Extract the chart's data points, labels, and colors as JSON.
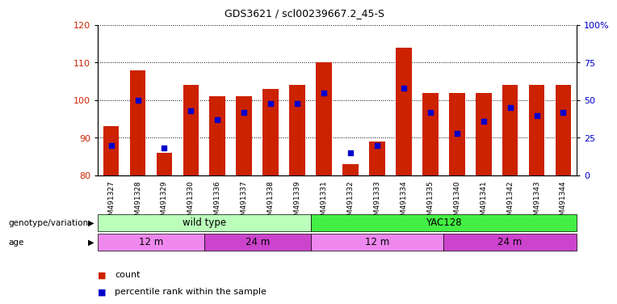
{
  "title": "GDS3621 / scl00239667.2_45-S",
  "samples": [
    "GSM491327",
    "GSM491328",
    "GSM491329",
    "GSM491330",
    "GSM491336",
    "GSM491337",
    "GSM491338",
    "GSM491339",
    "GSM491331",
    "GSM491332",
    "GSM491333",
    "GSM491334",
    "GSM491335",
    "GSM491340",
    "GSM491341",
    "GSM491342",
    "GSM491343",
    "GSM491344"
  ],
  "count_values": [
    93,
    108,
    86,
    104,
    101,
    101,
    103,
    104,
    110,
    83,
    89,
    114,
    102,
    102,
    102,
    104,
    104,
    104
  ],
  "percentile_values": [
    20,
    50,
    18,
    43,
    37,
    42,
    48,
    48,
    55,
    15,
    20,
    58,
    42,
    28,
    36,
    45,
    40,
    42
  ],
  "ylim_left": [
    80,
    120
  ],
  "ylim_right": [
    0,
    100
  ],
  "yticks_left": [
    80,
    90,
    100,
    110,
    120
  ],
  "yticks_right": [
    0,
    25,
    50,
    75,
    100
  ],
  "ytick_labels_right": [
    "0",
    "25",
    "50",
    "75",
    "100%"
  ],
  "bar_color": "#cc2200",
  "dot_color": "#0000cc",
  "genotype_groups": [
    {
      "label": "wild type",
      "start": 0,
      "end": 8,
      "color": "#bbffbb"
    },
    {
      "label": "YAC128",
      "start": 8,
      "end": 18,
      "color": "#44ee44"
    }
  ],
  "age_groups": [
    {
      "label": "12 m",
      "start": 0,
      "end": 4,
      "color": "#ee88ee"
    },
    {
      "label": "24 m",
      "start": 4,
      "end": 8,
      "color": "#cc44cc"
    },
    {
      "label": "12 m",
      "start": 8,
      "end": 13,
      "color": "#ee88ee"
    },
    {
      "label": "24 m",
      "start": 13,
      "end": 18,
      "color": "#cc44cc"
    }
  ]
}
